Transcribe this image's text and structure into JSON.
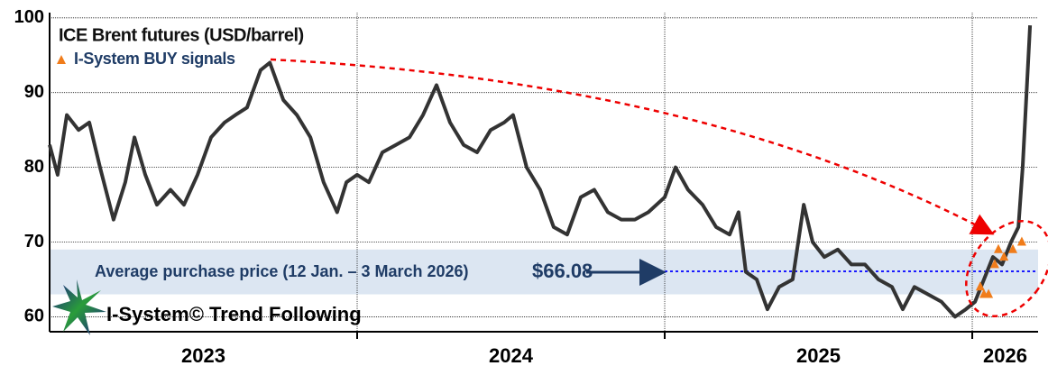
{
  "chart_data": {
    "type": "line",
    "xlim": [
      2023,
      2026.214
    ],
    "ylim": [
      58,
      100.7
    ],
    "yticks": [
      60,
      70,
      80,
      90,
      100
    ],
    "xticks": [
      {
        "value": 2023.5,
        "label": "2023"
      },
      {
        "value": 2024.5,
        "label": "2024"
      },
      {
        "value": 2025.5,
        "label": "2025"
      },
      {
        "value": 2026.107,
        "label": "2026"
      }
    ],
    "xgrid": [
      2024,
      2025,
      2026
    ],
    "grid": true,
    "series": [
      {
        "name": "ICE Brent futures (USD/barrel)",
        "color": "#333333",
        "x": [
          2023.0,
          2023.026,
          2023.056,
          2023.094,
          2023.129,
          2023.164,
          2023.208,
          2023.246,
          2023.276,
          2023.311,
          2023.349,
          2023.393,
          2023.437,
          2023.481,
          2023.525,
          2023.569,
          2023.604,
          2023.642,
          2023.686,
          2023.716,
          2023.76,
          2023.804,
          2023.848,
          2023.891,
          2023.935,
          2023.965,
          2024.0,
          2024.038,
          2024.082,
          2024.126,
          2024.17,
          2024.214,
          2024.258,
          2024.302,
          2024.346,
          2024.39,
          2024.434,
          2024.478,
          2024.507,
          2024.551,
          2024.595,
          2024.639,
          2024.683,
          2024.727,
          2024.771,
          2024.815,
          2024.859,
          2024.903,
          2024.947,
          2025.0,
          2025.035,
          2025.076,
          2025.123,
          2025.167,
          2025.211,
          2025.24,
          2025.264,
          2025.299,
          2025.334,
          2025.372,
          2025.416,
          2025.452,
          2025.481,
          2025.519,
          2025.563,
          2025.607,
          2025.651,
          2025.695,
          2025.739,
          2025.774,
          2025.812,
          2025.856,
          2025.9,
          2025.944,
          2025.979,
          2026.009,
          2026.038,
          2026.067,
          2026.097,
          2026.126,
          2026.15,
          2026.164,
          2026.179,
          2026.188
        ],
        "values": [
          83,
          79,
          87,
          85,
          86,
          80,
          73,
          78,
          84,
          79,
          75,
          77,
          75,
          79,
          84,
          86,
          87,
          88,
          93,
          94,
          89,
          87,
          84,
          78,
          74,
          78,
          79,
          78,
          82,
          83,
          84,
          87,
          91,
          86,
          83,
          82,
          85,
          86,
          87,
          80,
          77,
          72,
          71,
          76,
          77,
          74,
          73,
          73,
          74,
          76,
          80,
          77,
          75,
          72,
          71,
          74,
          66,
          65,
          61,
          64,
          65,
          75,
          70,
          68,
          69,
          67,
          67,
          65,
          64,
          61,
          64,
          63,
          62,
          60,
          61,
          62,
          65,
          68,
          67,
          70,
          72,
          80,
          92,
          99
        ]
      },
      {
        "name": "I-System BUY signals",
        "color": "#f07c1a",
        "marker": "triangle",
        "x": [
          2026.026,
          2026.038,
          2026.053,
          2026.073,
          2026.085,
          2026.103,
          2026.132,
          2026.161
        ],
        "values": [
          64,
          63,
          63,
          67,
          69,
          68,
          69,
          70
        ]
      }
    ],
    "band": {
      "from": 63,
      "to": 69,
      "color": "#dce6f2"
    },
    "reference_line": {
      "value": 66.08,
      "label": "$66.08",
      "text": "Average purchase price (12 Jan. – 3 March 2026)",
      "color": "#1a1aff",
      "from_x": 2025
    },
    "logo": "I-System© Trend Following"
  }
}
